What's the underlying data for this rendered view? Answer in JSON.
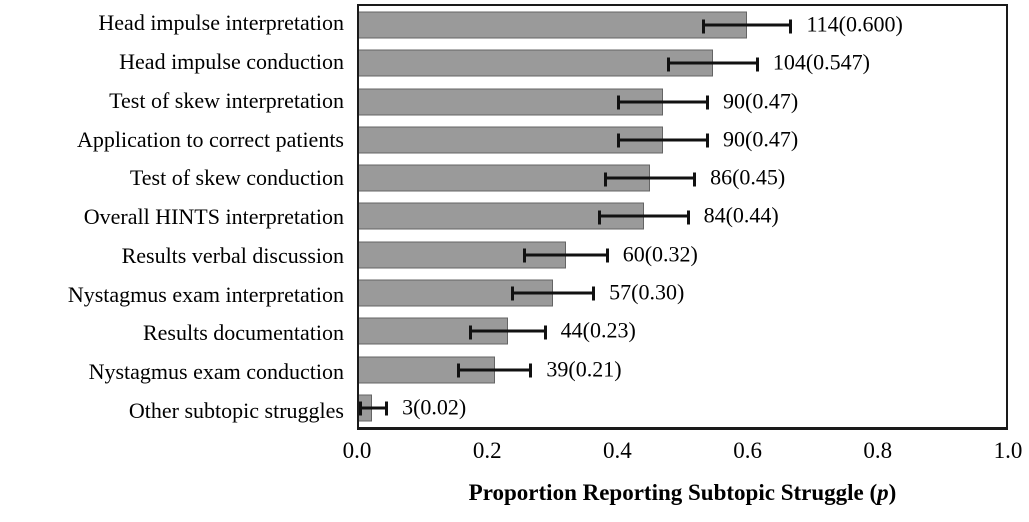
{
  "chart_data": {
    "type": "bar",
    "orientation": "horizontal",
    "title": "",
    "xlabel_prefix": "Proportion Reporting Subtopic Struggle (",
    "xlabel_italic": "p",
    "xlabel_suffix": ")",
    "xlim": [
      0,
      1
    ],
    "xticks": [
      "0.0",
      "0.2",
      "0.4",
      "0.6",
      "0.8",
      "1.0"
    ],
    "grid": false,
    "legend": false,
    "bar_color": "#9a9a9a",
    "bar_border_color": "#646464",
    "error_bar_color": "#111111",
    "frame_color": "#1a1a1a",
    "categories": [
      "Head impulse interpretation",
      "Head impulse conduction",
      "Test of skew interpretation",
      "Application to correct patients",
      "Test of skew conduction",
      "Overall HINTS interpretation",
      "Results verbal discussion",
      "Nystagmus exam interpretation",
      "Results documentation",
      "Nystagmus exam conduction",
      "Other subtopic struggles"
    ],
    "counts": [
      114,
      104,
      90,
      90,
      86,
      84,
      60,
      57,
      44,
      39,
      3
    ],
    "values": [
      0.6,
      0.547,
      0.47,
      0.47,
      0.45,
      0.44,
      0.32,
      0.3,
      0.23,
      0.21,
      0.02
    ],
    "errors": [
      0.07,
      0.071,
      0.071,
      0.071,
      0.071,
      0.071,
      0.066,
      0.065,
      0.06,
      0.058,
      0.025
    ],
    "bar_labels": [
      "114(0.600)",
      "104(0.547)",
      "90(0.47)",
      "90(0.47)",
      "86(0.45)",
      "84(0.44)",
      "60(0.32)",
      "57(0.30)",
      "44(0.23)",
      "39(0.21)",
      "3(0.02)"
    ]
  }
}
